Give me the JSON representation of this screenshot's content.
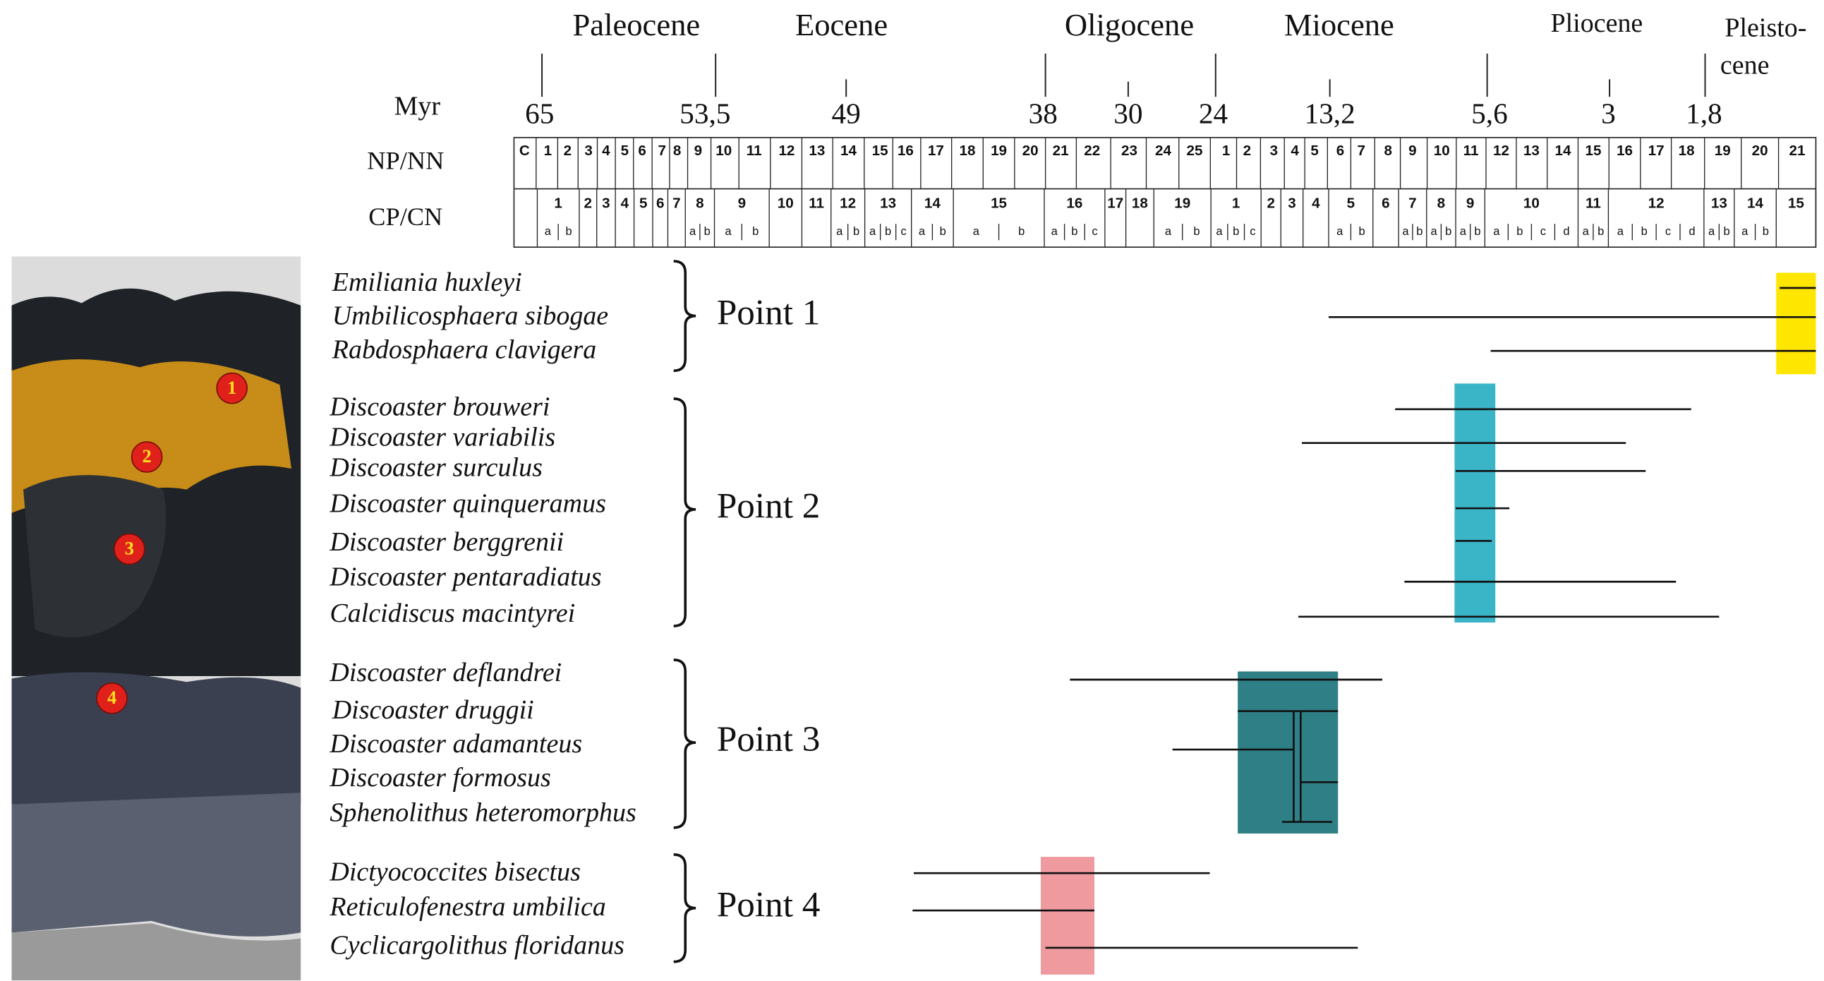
{
  "epochs": [
    [
      "Paleocene"
    ],
    [
      "Eocene"
    ],
    [
      "Oligocene"
    ],
    [
      "Miocene"
    ],
    [
      "Pliocene"
    ],
    [
      "Pleisto-",
      "cene"
    ]
  ],
  "ages_label": "Myr",
  "ages": [
    "65",
    "53,5",
    "49",
    "38",
    "30",
    "24",
    "13,2",
    "5,6",
    "3",
    "1,8"
  ],
  "np_label": "NP/NN",
  "np_zones": [
    "C",
    "1",
    "2",
    "3",
    "4",
    "5",
    "6",
    "7",
    "8",
    "9",
    "10",
    "11",
    "12",
    "13",
    "14",
    "15",
    "16",
    "17",
    "18",
    "19",
    "20",
    "21",
    "22",
    "23",
    "24",
    "25",
    "1",
    "2",
    "3",
    "4",
    "5",
    "6",
    "7",
    "8",
    "9",
    "10",
    "11",
    "12",
    "13",
    "14",
    "15",
    "16",
    "17",
    "18",
    "19",
    "20",
    "21"
  ],
  "cp_label": "CP/CN",
  "cp_zones": [
    {
      "label": "1",
      "sub": [
        "a",
        "b"
      ]
    },
    {
      "label": "2"
    },
    {
      "label": "3"
    },
    {
      "label": "4"
    },
    {
      "label": "5"
    },
    {
      "label": "6"
    },
    {
      "label": "7"
    },
    {
      "label": "8",
      "sub": [
        "a",
        "b"
      ]
    },
    {
      "label": "9",
      "sub": [
        "a",
        "b"
      ]
    },
    {
      "label": "10"
    },
    {
      "label": "11"
    },
    {
      "label": "12",
      "sub": [
        "a",
        "b"
      ]
    },
    {
      "label": "13",
      "sub": [
        "a",
        "b",
        "c"
      ]
    },
    {
      "label": "14",
      "sub": [
        "a",
        "b"
      ]
    },
    {
      "label": "15",
      "sub": [
        "a",
        "b"
      ]
    },
    {
      "label": "16",
      "sub": [
        "a",
        "b",
        "c"
      ]
    },
    {
      "label": "17"
    },
    {
      "label": "18"
    },
    {
      "label": "19",
      "sub": [
        "a",
        "b"
      ]
    },
    {
      "label": "1",
      "sub": [
        "a",
        "b",
        "c"
      ]
    },
    {
      "label": "2"
    },
    {
      "label": "3"
    },
    {
      "label": "4"
    },
    {
      "label": "5",
      "sub": [
        "a",
        "b"
      ]
    },
    {
      "label": "6"
    },
    {
      "label": "7",
      "sub": [
        "a",
        "b"
      ]
    },
    {
      "label": "8",
      "sub": [
        "a",
        "b"
      ]
    },
    {
      "label": "9",
      "sub": [
        "a",
        "b"
      ]
    },
    {
      "label": "10",
      "sub": [
        "a",
        "b",
        "c",
        "d"
      ]
    },
    {
      "label": "11",
      "sub": [
        "a",
        "b"
      ]
    },
    {
      "label": "12",
      "sub": [
        "a",
        "b",
        "c",
        "d"
      ]
    },
    {
      "label": "13",
      "sub": [
        "a",
        "b"
      ]
    },
    {
      "label": "14",
      "sub": [
        "a",
        "b"
      ]
    },
    {
      "label": "15"
    }
  ],
  "groups": [
    {
      "label": "Point 1",
      "species": [
        "Emiliania huxleyi",
        "Umbilicosphaera sibogae",
        "Rabdosphaera clavigera"
      ]
    },
    {
      "label": "Point 2",
      "species": [
        "Discoaster brouweri",
        "Discoaster variabilis",
        "Discoaster surculus",
        "Discoaster quinqueramus",
        "Discoaster berggrenii",
        "Discoaster pentaradiatus",
        "Calcidiscus macintyrei"
      ]
    },
    {
      "label": "Point 3",
      "species": [
        "Discoaster deflandrei",
        "Discoaster druggii",
        "Discoaster adamanteus",
        "Discoaster formosus",
        "Sphenolithus heteromorphus"
      ]
    },
    {
      "label": "Point 4",
      "species": [
        "Dictyococcites bisectus",
        "Reticulofenestra umbilica",
        "Cyclicargolithus floridanus"
      ]
    }
  ],
  "photo_markers": [
    "1",
    "2",
    "3",
    "4"
  ]
}
